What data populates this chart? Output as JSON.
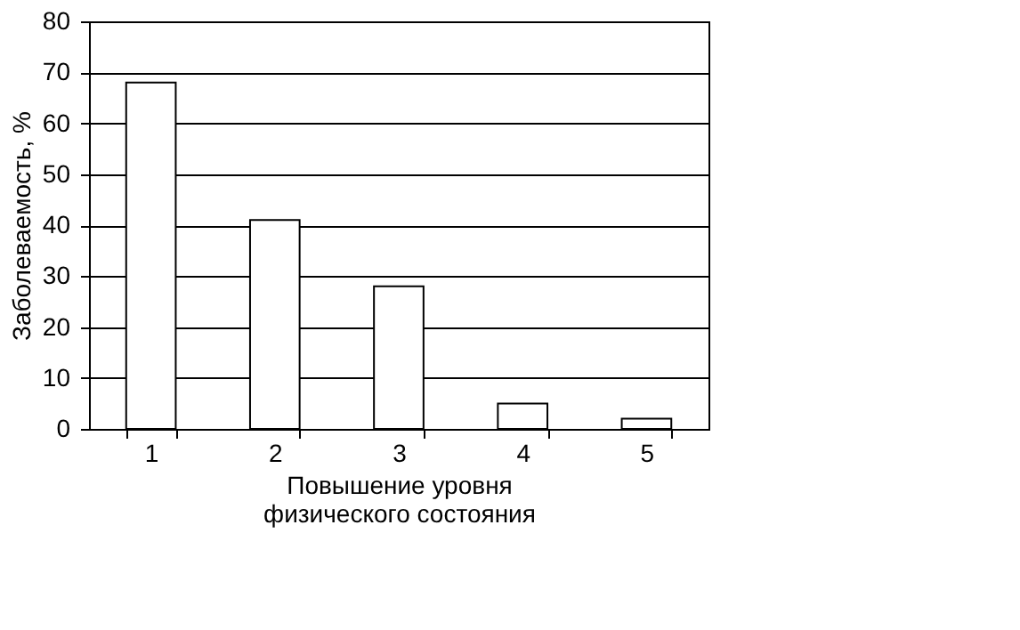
{
  "chart_data": {
    "type": "bar",
    "xlabel": "Повышение уровня\nфизического состояния",
    "ylabel": "Заболеваемость, %",
    "categories": [
      "1",
      "2",
      "3",
      "4",
      "5"
    ],
    "values": [
      68,
      41,
      28,
      5,
      2
    ],
    "color": "#ffffff",
    "ylim": [
      0,
      80
    ],
    "yticks": [
      0,
      10,
      20,
      30,
      40,
      50,
      60,
      70,
      80
    ],
    "grid": "y"
  }
}
